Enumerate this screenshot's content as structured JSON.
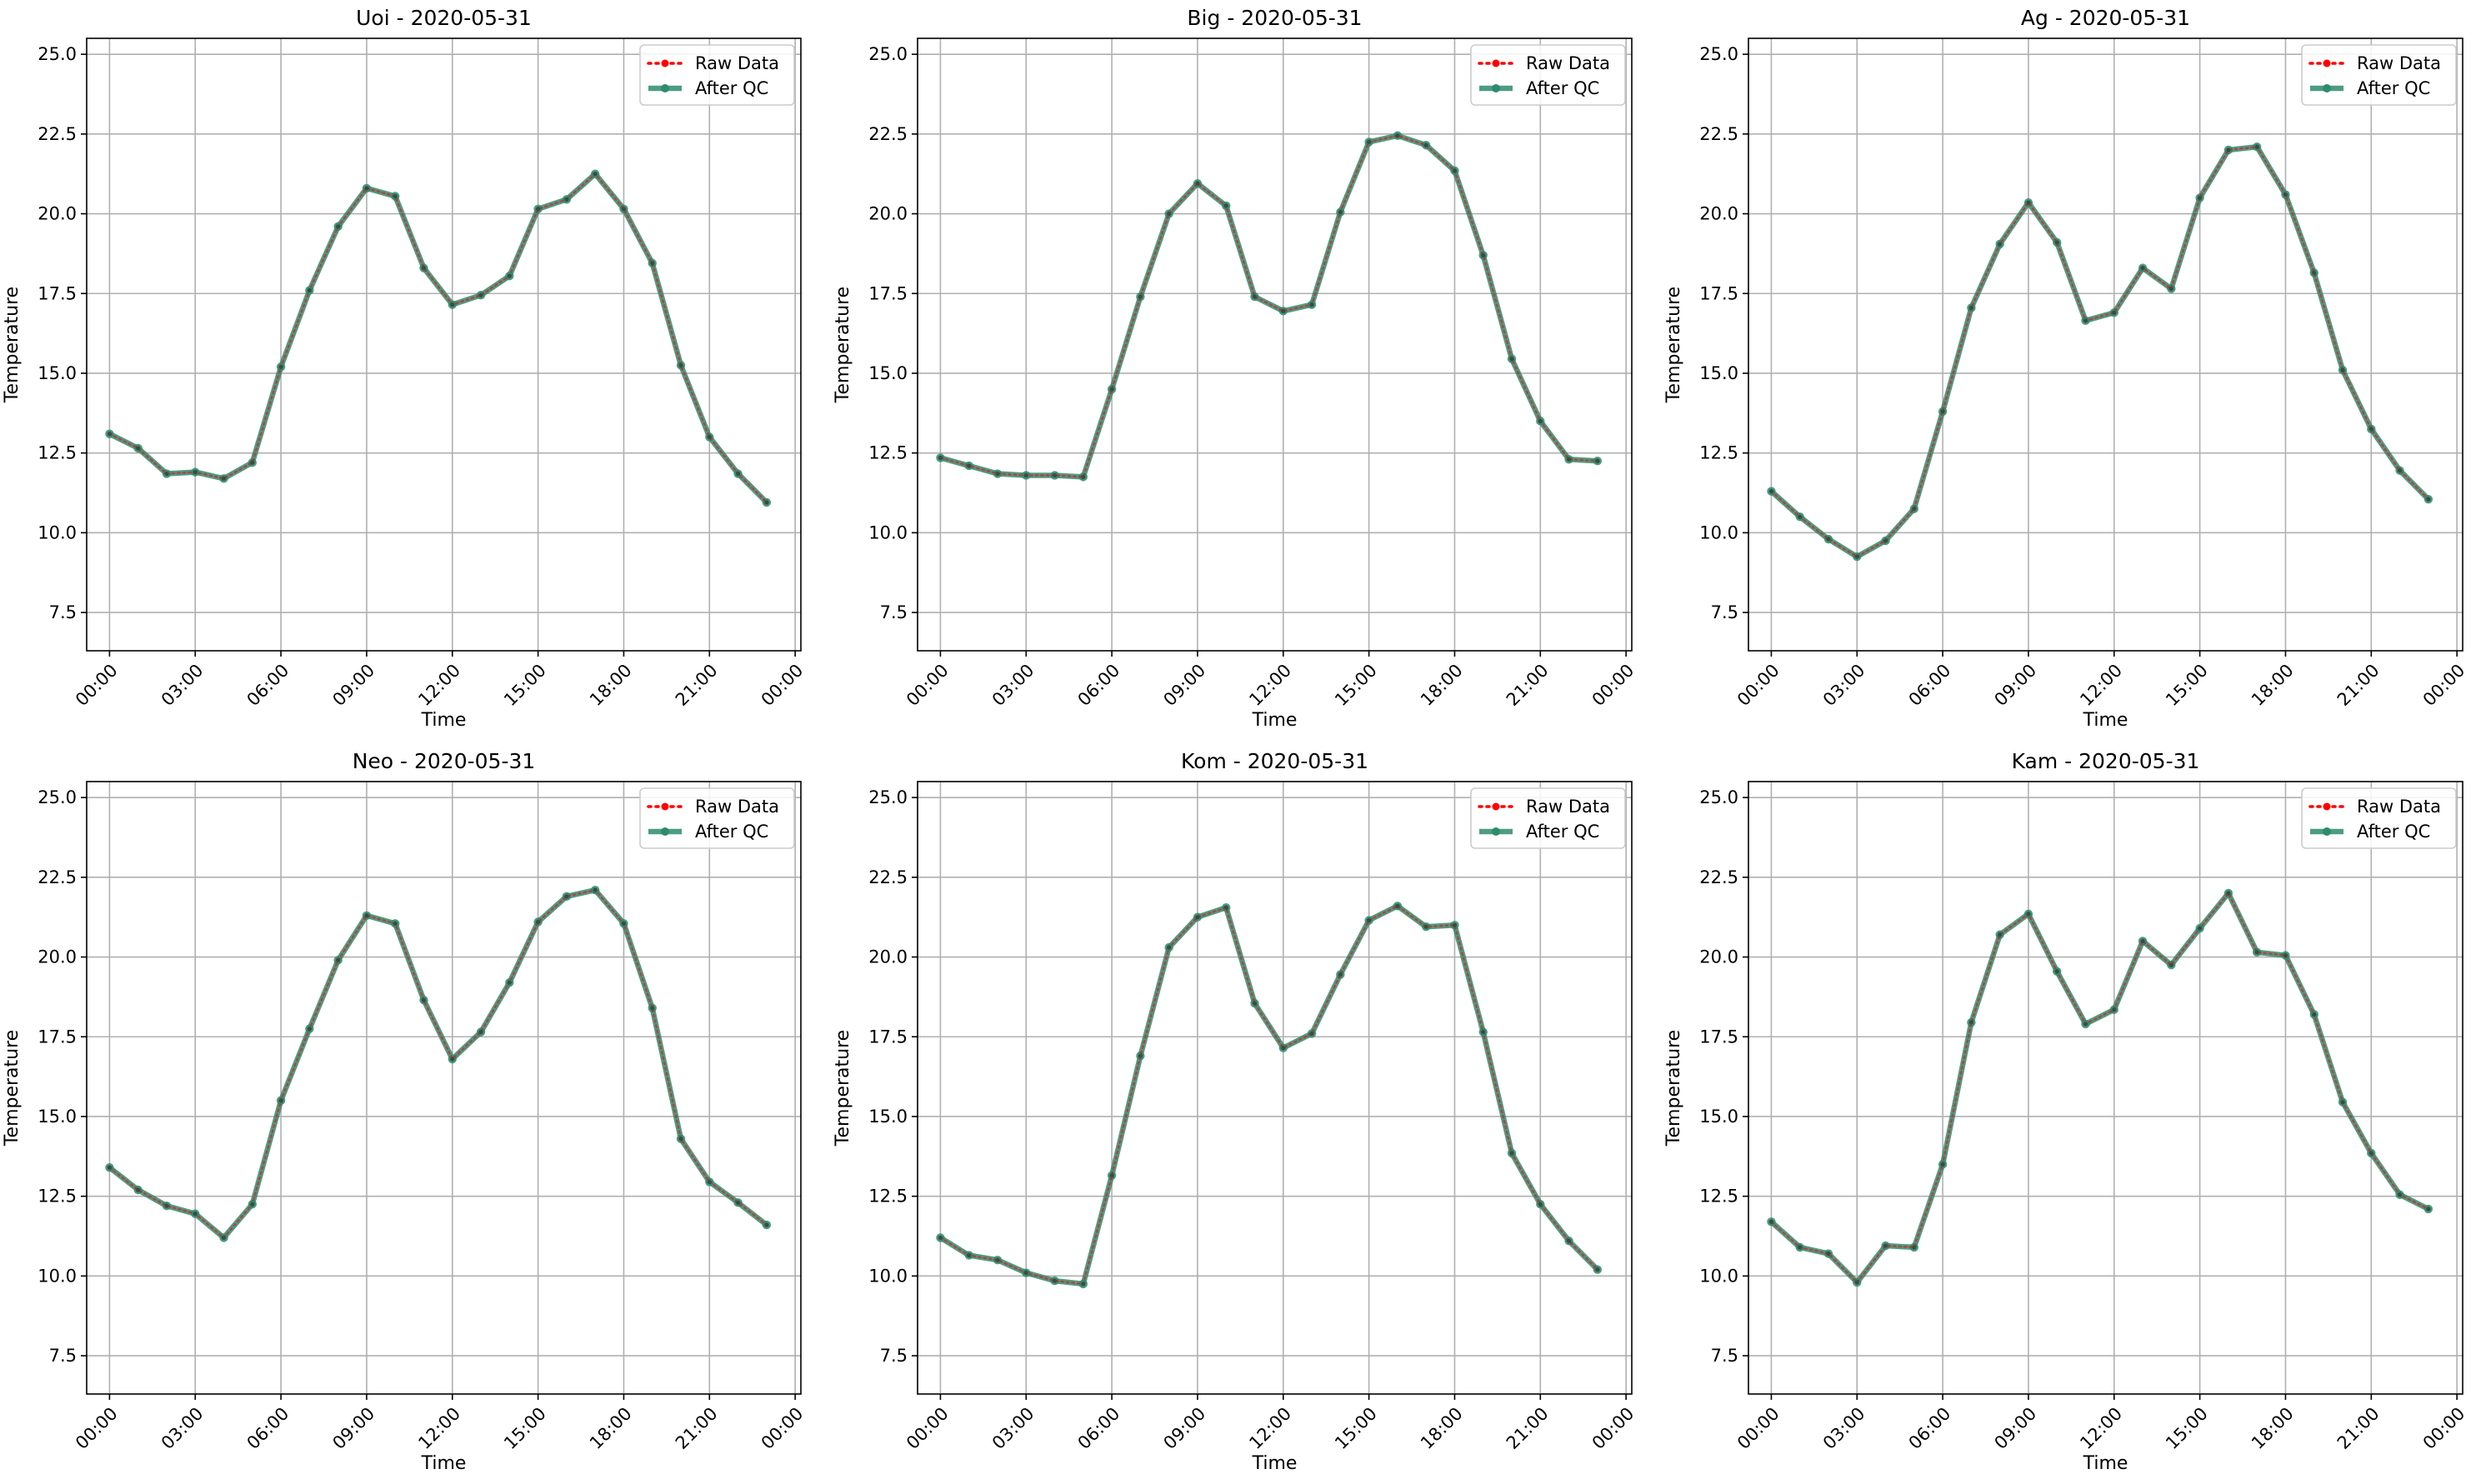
{
  "chart_data": [
    {
      "type": "line",
      "title": "Uoi - 2020-05-31",
      "xlabel": "Time",
      "ylabel": "Temperature",
      "ylim": [
        6.3,
        25.5
      ],
      "xlim_hours": [
        -0.8,
        24.2
      ],
      "yticks": [
        "7.5",
        "10.0",
        "12.5",
        "15.0",
        "17.5",
        "20.0",
        "22.5",
        "25.0"
      ],
      "xticks": [
        "00:00",
        "03:00",
        "06:00",
        "09:00",
        "12:00",
        "15:00",
        "18:00",
        "21:00",
        "00:00"
      ],
      "grid": true,
      "legend_position": "upper right",
      "x": [
        "00:00",
        "01:00",
        "02:00",
        "03:00",
        "04:00",
        "05:00",
        "06:00",
        "07:00",
        "08:00",
        "09:00",
        "10:00",
        "11:00",
        "12:00",
        "13:00",
        "14:00",
        "15:00",
        "16:00",
        "17:00",
        "18:00",
        "19:00",
        "20:00",
        "21:00",
        "22:00",
        "23:00"
      ],
      "series": [
        {
          "name": "Raw Data",
          "color": "#ff0000",
          "values": [
            13.1,
            12.65,
            11.85,
            11.9,
            11.7,
            12.2,
            15.2,
            17.6,
            19.6,
            20.8,
            20.55,
            18.3,
            17.15,
            17.45,
            18.05,
            20.15,
            20.45,
            21.25,
            20.15,
            18.45,
            15.25,
            13.0,
            11.85,
            10.95
          ]
        },
        {
          "name": "After QC",
          "color": "#2e8b6e",
          "values": [
            13.1,
            12.65,
            11.85,
            11.9,
            11.7,
            12.2,
            15.2,
            17.6,
            19.6,
            20.8,
            20.55,
            18.3,
            17.15,
            17.45,
            18.05,
            20.15,
            20.45,
            21.25,
            20.15,
            18.45,
            15.25,
            13.0,
            11.85,
            10.95
          ]
        }
      ]
    },
    {
      "type": "line",
      "title": "Big - 2020-05-31",
      "xlabel": "Time",
      "ylabel": "Temperature",
      "ylim": [
        6.3,
        25.5
      ],
      "xlim_hours": [
        -0.8,
        24.2
      ],
      "yticks": [
        "7.5",
        "10.0",
        "12.5",
        "15.0",
        "17.5",
        "20.0",
        "22.5",
        "25.0"
      ],
      "xticks": [
        "00:00",
        "03:00",
        "06:00",
        "09:00",
        "12:00",
        "15:00",
        "18:00",
        "21:00",
        "00:00"
      ],
      "grid": true,
      "legend_position": "upper right",
      "x": [
        "00:00",
        "01:00",
        "02:00",
        "03:00",
        "04:00",
        "05:00",
        "06:00",
        "07:00",
        "08:00",
        "09:00",
        "10:00",
        "11:00",
        "12:00",
        "13:00",
        "14:00",
        "15:00",
        "16:00",
        "17:00",
        "18:00",
        "19:00",
        "20:00",
        "21:00",
        "22:00",
        "23:00"
      ],
      "series": [
        {
          "name": "Raw Data",
          "color": "#ff0000",
          "values": [
            12.35,
            12.1,
            11.85,
            11.8,
            11.8,
            11.75,
            14.5,
            17.4,
            20.0,
            20.95,
            20.25,
            17.4,
            16.95,
            17.15,
            20.05,
            22.25,
            22.45,
            22.15,
            21.35,
            18.7,
            15.45,
            13.5,
            12.3,
            12.25
          ]
        },
        {
          "name": "After QC",
          "color": "#2e8b6e",
          "values": [
            12.35,
            12.1,
            11.85,
            11.8,
            11.8,
            11.75,
            14.5,
            17.4,
            20.0,
            20.95,
            20.25,
            17.4,
            16.95,
            17.15,
            20.05,
            22.25,
            22.45,
            22.15,
            21.35,
            18.7,
            15.45,
            13.5,
            12.3,
            12.25
          ]
        }
      ]
    },
    {
      "type": "line",
      "title": "Ag - 2020-05-31",
      "xlabel": "Time",
      "ylabel": "Temperature",
      "ylim": [
        6.3,
        25.5
      ],
      "xlim_hours": [
        -0.8,
        24.2
      ],
      "yticks": [
        "7.5",
        "10.0",
        "12.5",
        "15.0",
        "17.5",
        "20.0",
        "22.5",
        "25.0"
      ],
      "xticks": [
        "00:00",
        "03:00",
        "06:00",
        "09:00",
        "12:00",
        "15:00",
        "18:00",
        "21:00",
        "00:00"
      ],
      "grid": true,
      "legend_position": "upper right",
      "x": [
        "00:00",
        "01:00",
        "02:00",
        "03:00",
        "04:00",
        "05:00",
        "06:00",
        "07:00",
        "08:00",
        "09:00",
        "10:00",
        "11:00",
        "12:00",
        "13:00",
        "14:00",
        "15:00",
        "16:00",
        "17:00",
        "18:00",
        "19:00",
        "20:00",
        "21:00",
        "22:00",
        "23:00"
      ],
      "series": [
        {
          "name": "Raw Data",
          "color": "#ff0000",
          "values": [
            11.3,
            10.5,
            9.8,
            9.25,
            9.75,
            10.75,
            13.8,
            17.05,
            19.05,
            20.35,
            19.1,
            16.65,
            16.9,
            18.3,
            17.65,
            20.5,
            22.0,
            22.1,
            20.6,
            18.15,
            15.1,
            13.25,
            11.95,
            11.05
          ]
        },
        {
          "name": "After QC",
          "color": "#2e8b6e",
          "values": [
            11.3,
            10.5,
            9.8,
            9.25,
            9.75,
            10.75,
            13.8,
            17.05,
            19.05,
            20.35,
            19.1,
            16.65,
            16.9,
            18.3,
            17.65,
            20.5,
            22.0,
            22.1,
            20.6,
            18.15,
            15.1,
            13.25,
            11.95,
            11.05
          ]
        }
      ]
    },
    {
      "type": "line",
      "title": "Neo - 2020-05-31",
      "xlabel": "Time",
      "ylabel": "Temperature",
      "ylim": [
        6.3,
        25.5
      ],
      "xlim_hours": [
        -0.8,
        24.2
      ],
      "yticks": [
        "7.5",
        "10.0",
        "12.5",
        "15.0",
        "17.5",
        "20.0",
        "22.5",
        "25.0"
      ],
      "xticks": [
        "00:00",
        "03:00",
        "06:00",
        "09:00",
        "12:00",
        "15:00",
        "18:00",
        "21:00",
        "00:00"
      ],
      "grid": true,
      "legend_position": "upper right",
      "x": [
        "00:00",
        "01:00",
        "02:00",
        "03:00",
        "04:00",
        "05:00",
        "06:00",
        "07:00",
        "08:00",
        "09:00",
        "10:00",
        "11:00",
        "12:00",
        "13:00",
        "14:00",
        "15:00",
        "16:00",
        "17:00",
        "18:00",
        "19:00",
        "20:00",
        "21:00",
        "22:00",
        "23:00"
      ],
      "series": [
        {
          "name": "Raw Data",
          "color": "#ff0000",
          "values": [
            13.4,
            12.7,
            12.2,
            11.95,
            11.2,
            12.25,
            15.5,
            17.75,
            19.9,
            21.3,
            21.05,
            18.65,
            16.8,
            17.65,
            19.2,
            21.1,
            21.9,
            22.1,
            21.05,
            18.4,
            14.3,
            12.95,
            12.3,
            11.6
          ]
        },
        {
          "name": "After QC",
          "color": "#2e8b6e",
          "values": [
            13.4,
            12.7,
            12.2,
            11.95,
            11.2,
            12.25,
            15.5,
            17.75,
            19.9,
            21.3,
            21.05,
            18.65,
            16.8,
            17.65,
            19.2,
            21.1,
            21.9,
            22.1,
            21.05,
            18.4,
            14.3,
            12.95,
            12.3,
            11.6
          ]
        }
      ]
    },
    {
      "type": "line",
      "title": "Kom - 2020-05-31",
      "xlabel": "Time",
      "ylabel": "Temperature",
      "ylim": [
        6.3,
        25.5
      ],
      "xlim_hours": [
        -0.8,
        24.2
      ],
      "yticks": [
        "7.5",
        "10.0",
        "12.5",
        "15.0",
        "17.5",
        "20.0",
        "22.5",
        "25.0"
      ],
      "xticks": [
        "00:00",
        "03:00",
        "06:00",
        "09:00",
        "12:00",
        "15:00",
        "18:00",
        "21:00",
        "00:00"
      ],
      "grid": true,
      "legend_position": "upper right",
      "x": [
        "00:00",
        "01:00",
        "02:00",
        "03:00",
        "04:00",
        "05:00",
        "06:00",
        "07:00",
        "08:00",
        "09:00",
        "10:00",
        "11:00",
        "12:00",
        "13:00",
        "14:00",
        "15:00",
        "16:00",
        "17:00",
        "18:00",
        "19:00",
        "20:00",
        "21:00",
        "22:00",
        "23:00"
      ],
      "series": [
        {
          "name": "Raw Data",
          "color": "#ff0000",
          "values": [
            11.2,
            10.65,
            10.5,
            10.1,
            9.85,
            9.75,
            13.15,
            16.9,
            20.3,
            21.25,
            21.55,
            18.55,
            17.15,
            17.6,
            19.45,
            21.15,
            21.6,
            20.95,
            21.0,
            17.65,
            13.85,
            12.25,
            11.1,
            10.2
          ]
        },
        {
          "name": "After QC",
          "color": "#2e8b6e",
          "values": [
            11.2,
            10.65,
            10.5,
            10.1,
            9.85,
            9.75,
            13.15,
            16.9,
            20.3,
            21.25,
            21.55,
            18.55,
            17.15,
            17.6,
            19.45,
            21.15,
            21.6,
            20.95,
            21.0,
            17.65,
            13.85,
            12.25,
            11.1,
            10.2
          ]
        }
      ]
    },
    {
      "type": "line",
      "title": "Kam - 2020-05-31",
      "xlabel": "Time",
      "ylabel": "Temperature",
      "ylim": [
        6.3,
        25.5
      ],
      "xlim_hours": [
        -0.8,
        24.2
      ],
      "yticks": [
        "7.5",
        "10.0",
        "12.5",
        "15.0",
        "17.5",
        "20.0",
        "22.5",
        "25.0"
      ],
      "xticks": [
        "00:00",
        "03:00",
        "06:00",
        "09:00",
        "12:00",
        "15:00",
        "18:00",
        "21:00",
        "00:00"
      ],
      "grid": true,
      "legend_position": "upper right",
      "x": [
        "00:00",
        "01:00",
        "02:00",
        "03:00",
        "04:00",
        "05:00",
        "06:00",
        "07:00",
        "08:00",
        "09:00",
        "10:00",
        "11:00",
        "12:00",
        "13:00",
        "14:00",
        "15:00",
        "16:00",
        "17:00",
        "18:00",
        "19:00",
        "20:00",
        "21:00",
        "22:00",
        "23:00"
      ],
      "series": [
        {
          "name": "Raw Data",
          "color": "#ff0000",
          "values": [
            11.7,
            10.9,
            10.7,
            9.8,
            10.95,
            10.9,
            13.5,
            17.95,
            20.7,
            21.35,
            19.55,
            17.9,
            18.35,
            20.5,
            19.75,
            20.9,
            22.0,
            20.15,
            20.05,
            18.2,
            15.45,
            13.85,
            12.55,
            12.1
          ]
        },
        {
          "name": "After QC",
          "color": "#2e8b6e",
          "values": [
            11.7,
            10.9,
            10.7,
            9.8,
            10.95,
            10.9,
            13.5,
            17.95,
            20.7,
            21.35,
            19.55,
            17.9,
            18.35,
            20.5,
            19.75,
            20.9,
            22.0,
            20.15,
            20.05,
            18.2,
            15.45,
            13.85,
            12.55,
            12.1
          ]
        }
      ]
    }
  ]
}
